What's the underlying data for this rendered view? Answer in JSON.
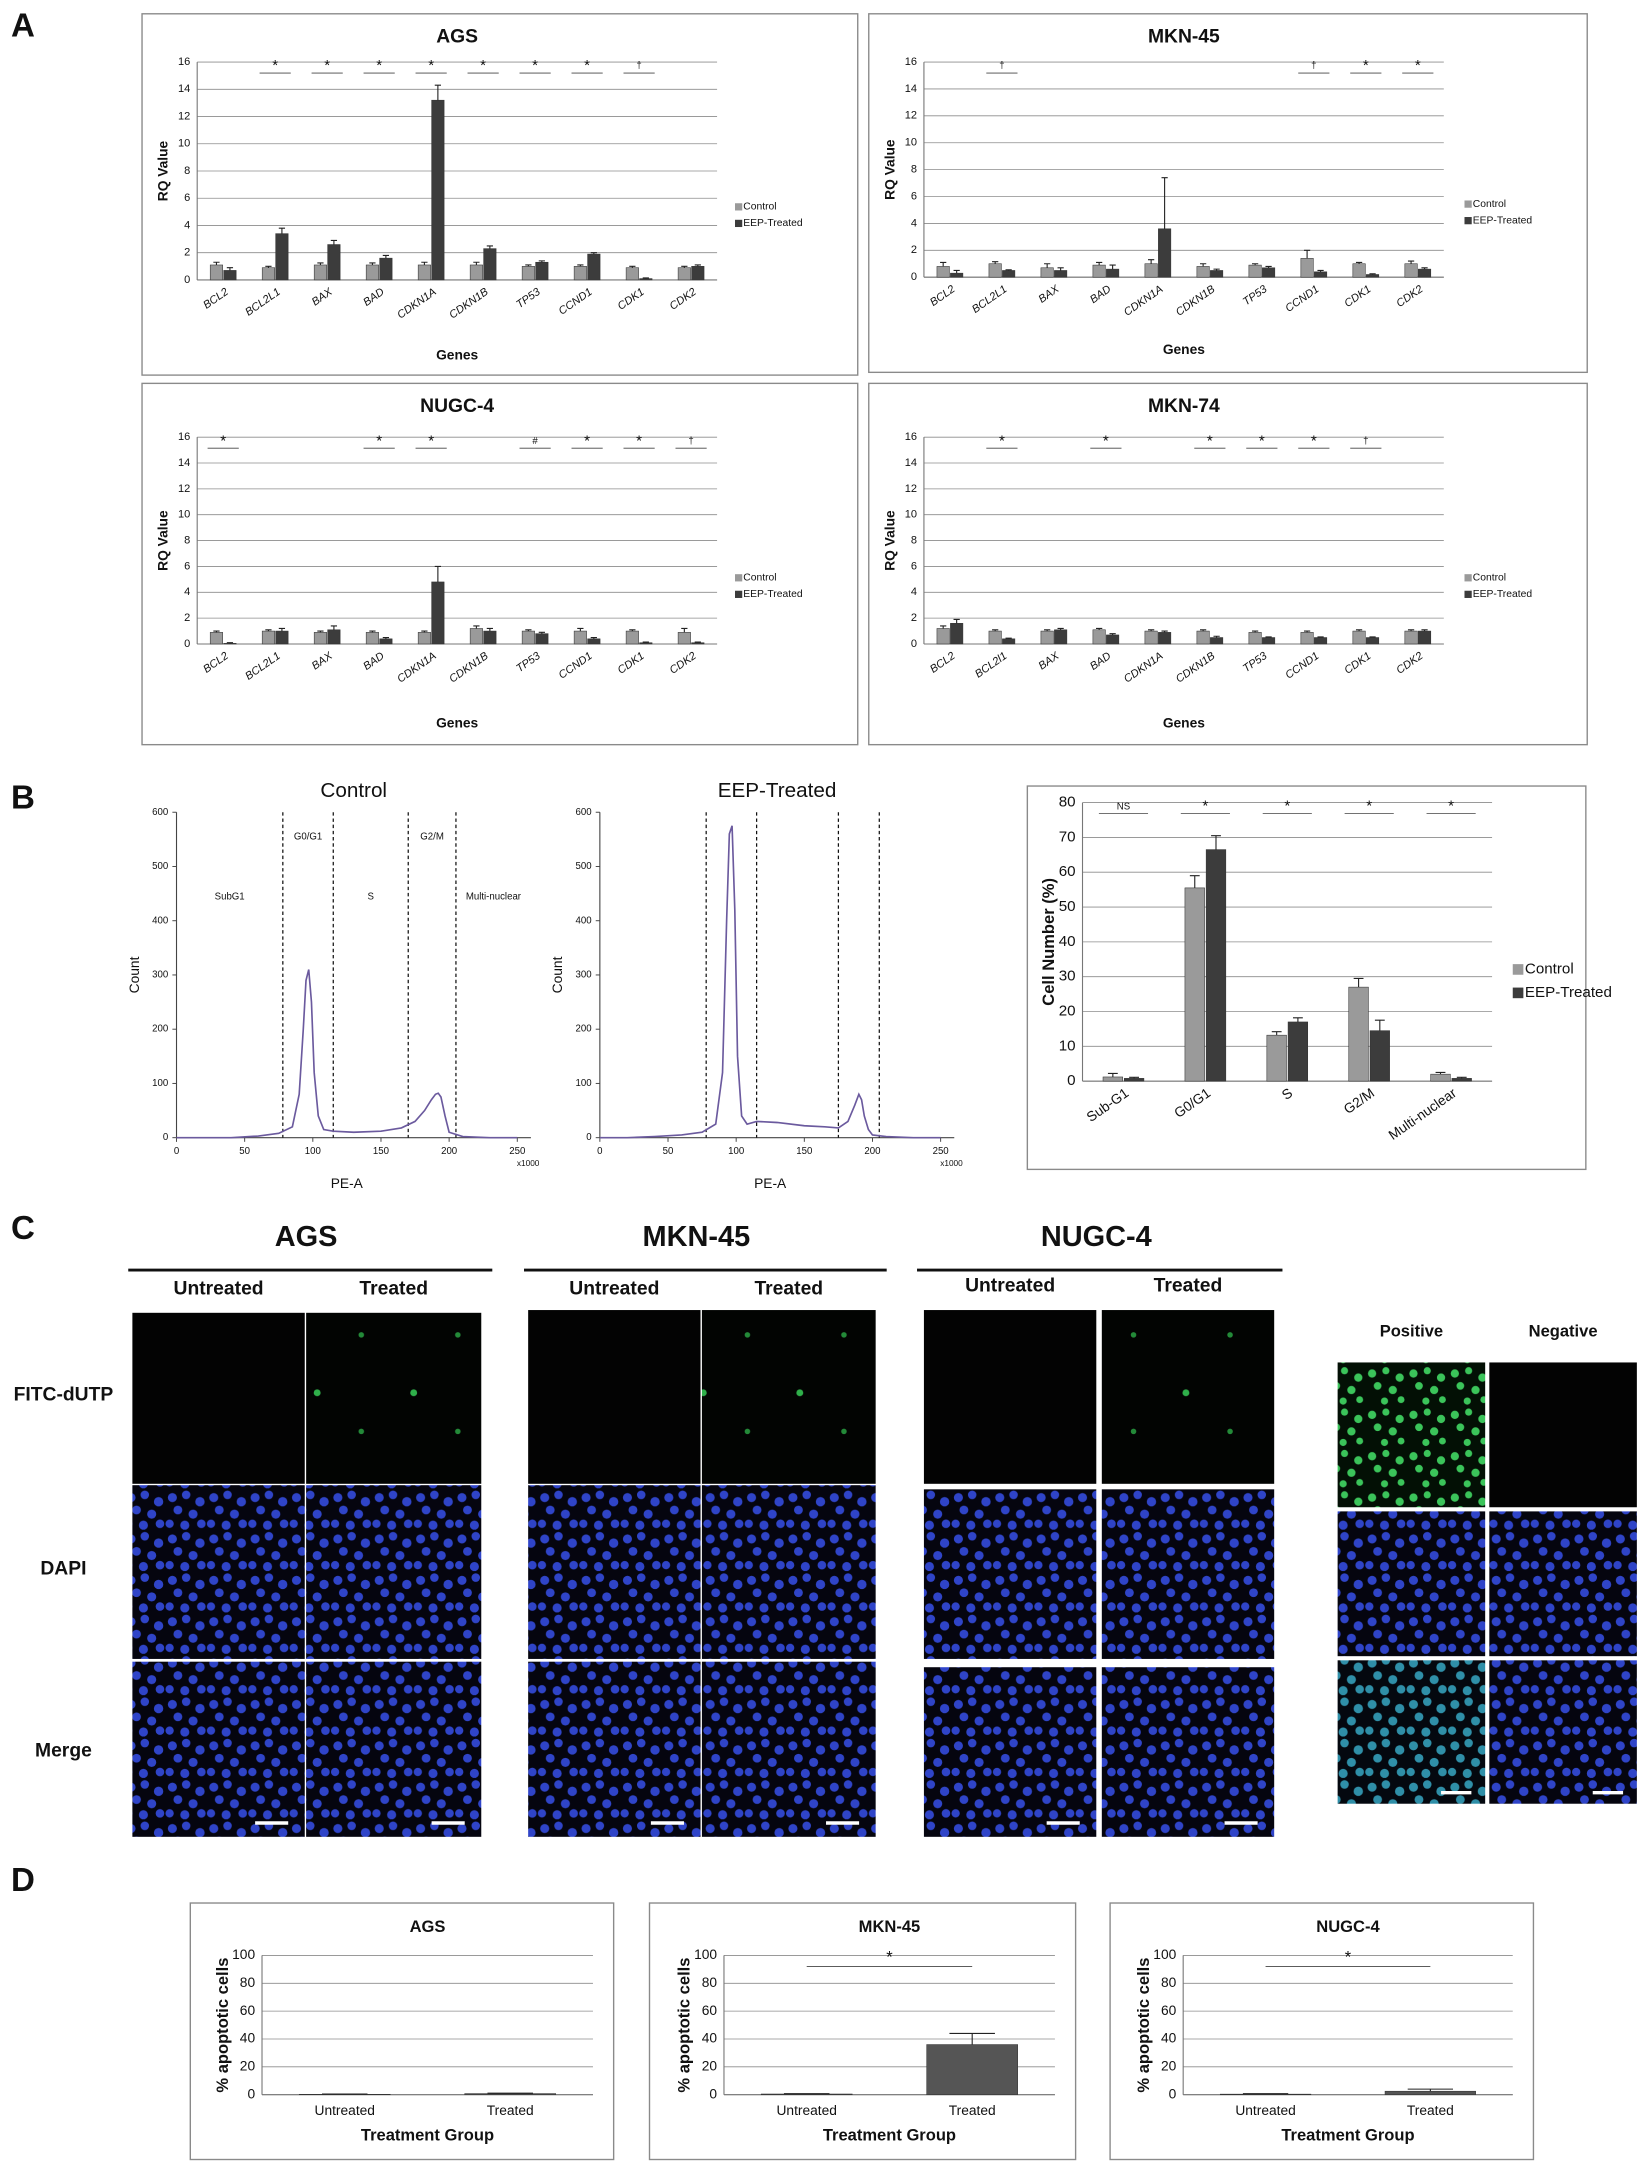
{
  "panels": [
    "A",
    "B",
    "C",
    "D"
  ],
  "chart_data": [
    {
      "type": "bar",
      "title": "AGS",
      "ylabel": "RQ Value",
      "xlabel": "Genes",
      "categories": [
        "BCL2",
        "BCL2L1",
        "BAX",
        "BAD",
        "CDKN1A",
        "CDKN1B",
        "TP53",
        "CCND1",
        "CDK1",
        "CDK2"
      ],
      "series": [
        {
          "name": "Control",
          "color": "#9a9a9a",
          "values": [
            1.1,
            0.9,
            1.1,
            1.1,
            1.1,
            1.1,
            1.0,
            1.0,
            0.9,
            0.9
          ],
          "errors": [
            0.2,
            0.1,
            0.15,
            0.15,
            0.2,
            0.2,
            0.1,
            0.1,
            0.1,
            0.1
          ]
        },
        {
          "name": "EEP-Treated",
          "color": "#3c3c3c",
          "values": [
            0.7,
            3.4,
            2.6,
            1.6,
            13.2,
            2.3,
            1.3,
            1.9,
            0.1,
            1.0
          ],
          "errors": [
            0.2,
            0.4,
            0.3,
            0.2,
            1.1,
            0.2,
            0.1,
            0.1,
            0.05,
            0.1
          ]
        }
      ],
      "significance": [
        null,
        "*",
        "*",
        "*",
        "*",
        "*",
        "*",
        "*",
        "†",
        null
      ],
      "ylim": [
        0,
        16
      ],
      "yticks": [
        0,
        2,
        4,
        6,
        8,
        10,
        12,
        14,
        16
      ],
      "grid": true,
      "legend": "right"
    },
    {
      "type": "bar",
      "title": "MKN-45",
      "ylabel": "RQ Value",
      "xlabel": "Genes",
      "categories": [
        "BCL2",
        "BCL2L1",
        "BAX",
        "BAD",
        "CDKN1A",
        "CDKN1B",
        "TP53",
        "CCND1",
        "CDK1",
        "CDK2"
      ],
      "series": [
        {
          "name": "Control",
          "color": "#9a9a9a",
          "values": [
            0.8,
            1.0,
            0.7,
            0.9,
            1.0,
            0.8,
            0.9,
            1.4,
            1.0,
            1.0
          ],
          "errors": [
            0.3,
            0.15,
            0.3,
            0.2,
            0.3,
            0.2,
            0.1,
            0.6,
            0.1,
            0.2
          ]
        },
        {
          "name": "EEP-Treated",
          "color": "#3c3c3c",
          "values": [
            0.3,
            0.5,
            0.5,
            0.6,
            3.6,
            0.5,
            0.7,
            0.4,
            0.2,
            0.6
          ],
          "errors": [
            0.2,
            0.05,
            0.2,
            0.3,
            3.8,
            0.1,
            0.1,
            0.1,
            0.05,
            0.1
          ]
        }
      ],
      "significance": [
        null,
        "†",
        null,
        null,
        null,
        null,
        null,
        "†",
        "*",
        "*"
      ],
      "ylim": [
        0,
        16
      ],
      "yticks": [
        0,
        2,
        4,
        6,
        8,
        10,
        12,
        14,
        16
      ],
      "grid": true,
      "legend": "right"
    },
    {
      "type": "bar",
      "title": "NUGC-4",
      "ylabel": "RQ Value",
      "xlabel": "Genes",
      "categories": [
        "BCL2",
        "BCL2L1",
        "BAX",
        "BAD",
        "CDKN1A",
        "CDKN1B",
        "TP53",
        "CCND1",
        "CDK1",
        "CDK2"
      ],
      "series": [
        {
          "name": "Control",
          "color": "#9a9a9a",
          "values": [
            0.9,
            1.0,
            0.9,
            0.9,
            0.9,
            1.2,
            1.0,
            1.0,
            1.0,
            0.9
          ],
          "errors": [
            0.1,
            0.1,
            0.1,
            0.1,
            0.1,
            0.2,
            0.1,
            0.2,
            0.1,
            0.3
          ]
        },
        {
          "name": "EEP-Treated",
          "color": "#3c3c3c",
          "values": [
            0.05,
            1.0,
            1.1,
            0.4,
            4.8,
            1.0,
            0.8,
            0.4,
            0.1,
            0.1
          ],
          "errors": [
            0.05,
            0.2,
            0.3,
            0.1,
            1.2,
            0.2,
            0.1,
            0.1,
            0.05,
            0.05
          ]
        }
      ],
      "significance": [
        "*",
        null,
        null,
        "*",
        "*",
        null,
        "#",
        "*",
        "*",
        "†"
      ],
      "ylim": [
        0,
        16
      ],
      "yticks": [
        0,
        2,
        4,
        6,
        8,
        10,
        12,
        14,
        16
      ],
      "grid": true,
      "legend": "right"
    },
    {
      "type": "bar",
      "title": "MKN-74",
      "ylabel": "RQ Value",
      "xlabel": "Genes",
      "categories": [
        "BCL2",
        "BCL2l1",
        "BAX",
        "BAD",
        "CDKN1A",
        "CDKN1B",
        "TP53",
        "CCND1",
        "CDK1",
        "CDK2"
      ],
      "series": [
        {
          "name": "Control",
          "color": "#9a9a9a",
          "values": [
            1.2,
            1.0,
            1.0,
            1.1,
            1.0,
            1.0,
            0.9,
            0.9,
            1.0,
            1.0
          ],
          "errors": [
            0.2,
            0.1,
            0.1,
            0.1,
            0.1,
            0.1,
            0.1,
            0.1,
            0.1,
            0.1
          ]
        },
        {
          "name": "EEP-Treated",
          "color": "#3c3c3c",
          "values": [
            1.6,
            0.4,
            1.1,
            0.7,
            0.9,
            0.5,
            0.5,
            0.5,
            0.5,
            1.0
          ],
          "errors": [
            0.3,
            0.05,
            0.1,
            0.1,
            0.1,
            0.1,
            0.05,
            0.05,
            0.05,
            0.1
          ]
        }
      ],
      "significance": [
        null,
        "*",
        null,
        "*",
        null,
        "*",
        "*",
        "*",
        "†",
        null
      ],
      "ylim": [
        0,
        16
      ],
      "yticks": [
        0,
        2,
        4,
        6,
        8,
        10,
        12,
        14,
        16
      ],
      "grid": true,
      "legend": "right"
    },
    {
      "type": "line",
      "title": "Control",
      "xlabel": "PE-A",
      "ylabel": "Count",
      "x_unit_label": "x1000",
      "x": [
        0,
        20,
        40,
        60,
        75,
        85,
        90,
        93,
        95,
        97,
        99,
        101,
        104,
        108,
        115,
        130,
        150,
        165,
        175,
        182,
        187,
        190,
        192,
        194,
        197,
        200,
        210,
        230,
        250
      ],
      "series": [
        {
          "color": "#6b5a9e",
          "values": [
            0,
            0,
            0,
            3,
            8,
            20,
            80,
            200,
            290,
            310,
            250,
            120,
            40,
            15,
            12,
            10,
            12,
            18,
            30,
            50,
            70,
            80,
            82,
            75,
            40,
            10,
            2,
            0,
            0
          ]
        }
      ],
      "gates": [
        78,
        115,
        170,
        205
      ],
      "gate_labels": [
        "SubG1",
        "G0/G1",
        "S",
        "G2/M",
        "Multi-nuclear"
      ],
      "xlim": [
        0,
        260
      ],
      "xticks": [
        0,
        50,
        100,
        150,
        200,
        250
      ],
      "ylim": [
        0,
        600
      ],
      "yticks": [
        0,
        100,
        200,
        300,
        400,
        500,
        600
      ]
    },
    {
      "type": "line",
      "title": "EEP-Treated",
      "xlabel": "PE-A",
      "ylabel": "Count",
      "x_unit_label": "x1000",
      "x": [
        0,
        20,
        40,
        60,
        75,
        85,
        90,
        93,
        95,
        97,
        99,
        101,
        104,
        108,
        115,
        130,
        150,
        165,
        175,
        182,
        187,
        190,
        192,
        194,
        197,
        200,
        210,
        230,
        250
      ],
      "series": [
        {
          "color": "#6b5a9e",
          "values": [
            0,
            0,
            2,
            5,
            10,
            25,
            120,
            400,
            560,
            575,
            420,
            150,
            40,
            25,
            30,
            28,
            22,
            20,
            18,
            30,
            60,
            80,
            70,
            40,
            15,
            5,
            2,
            0,
            0
          ]
        }
      ],
      "gates": [
        78,
        115,
        175,
        205
      ],
      "xlim": [
        0,
        260
      ],
      "xticks": [
        0,
        50,
        100,
        150,
        200,
        250
      ],
      "ylim": [
        0,
        600
      ],
      "yticks": [
        0,
        100,
        200,
        300,
        400,
        500,
        600
      ]
    },
    {
      "type": "bar",
      "ylabel": "Cell Number (%)",
      "categories": [
        "Sub-G1",
        "G0/G1",
        "S",
        "G2/M",
        "Multi-nuclear"
      ],
      "series": [
        {
          "name": "Control",
          "color": "#9a9a9a",
          "values": [
            1.2,
            55.5,
            13.2,
            27,
            2
          ],
          "errors": [
            1,
            3.5,
            1,
            2.5,
            0.5
          ]
        },
        {
          "name": "EEP-Treated",
          "color": "#3c3c3c",
          "values": [
            0.8,
            66.5,
            17,
            14.5,
            0.8
          ],
          "errors": [
            0.3,
            4,
            1.2,
            3,
            0.3
          ]
        }
      ],
      "significance": [
        "NS",
        "*",
        "*",
        "*",
        "*"
      ],
      "ylim": [
        0,
        80
      ],
      "yticks": [
        0,
        10,
        20,
        30,
        40,
        50,
        60,
        70,
        80
      ],
      "grid": true,
      "legend": "right"
    },
    {
      "type": "bar",
      "title": "AGS",
      "ylabel": "% apoptotic cells",
      "xlabel": "Treatment Group",
      "categories": [
        "Untreated",
        "Treated"
      ],
      "values": [
        0.3,
        0.8
      ],
      "errors": [
        0.2,
        0.3
      ],
      "color": "#555555",
      "ylim": [
        0,
        100
      ],
      "yticks": [
        0,
        20,
        40,
        60,
        80,
        100
      ],
      "grid": true
    },
    {
      "type": "bar",
      "title": "MKN-45",
      "ylabel": "% apoptotic cells",
      "xlabel": "Treatment Group",
      "categories": [
        "Untreated",
        "Treated"
      ],
      "values": [
        0.5,
        36
      ],
      "errors": [
        0.2,
        8
      ],
      "color": "#555555",
      "significance": "*",
      "ylim": [
        0,
        100
      ],
      "yticks": [
        0,
        20,
        40,
        60,
        80,
        100
      ],
      "grid": true
    },
    {
      "type": "bar",
      "title": "NUGC-4",
      "ylabel": "% apoptotic cells",
      "xlabel": "Treatment Group",
      "categories": [
        "Untreated",
        "Treated"
      ],
      "values": [
        0.4,
        2.5
      ],
      "errors": [
        0.3,
        1.5
      ],
      "color": "#555555",
      "significance": "*",
      "ylim": [
        0,
        100
      ],
      "yticks": [
        0,
        20,
        40,
        60,
        80,
        100
      ],
      "grid": true
    }
  ],
  "micrographs": {
    "cell_lines": [
      {
        "name": "AGS",
        "columns": [
          "Untreated",
          "Treated"
        ]
      },
      {
        "name": "MKN-45",
        "columns": [
          "Untreated",
          "Treated"
        ]
      },
      {
        "name": "NUGC-4",
        "columns": [
          "Untreated",
          "Treated"
        ]
      }
    ],
    "rows": [
      "FITC-dUTP",
      "DAPI",
      "Merge"
    ],
    "controls": [
      "Positive",
      "Negative"
    ]
  }
}
